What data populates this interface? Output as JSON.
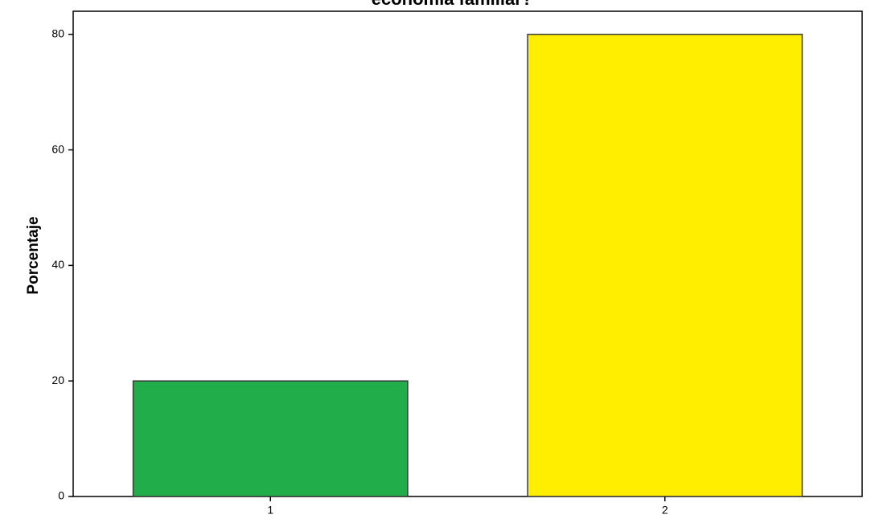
{
  "chart_data": {
    "type": "bar",
    "title": "economía familiar?",
    "xlabel": "",
    "ylabel": "Porcentaje",
    "categories": [
      "1",
      "2"
    ],
    "values": [
      20,
      80
    ],
    "colors": [
      "#22ad4b",
      "#ffee00"
    ],
    "ylim": [
      0,
      84
    ],
    "yticks": [
      0,
      20,
      40,
      60,
      80
    ],
    "grid": false
  }
}
